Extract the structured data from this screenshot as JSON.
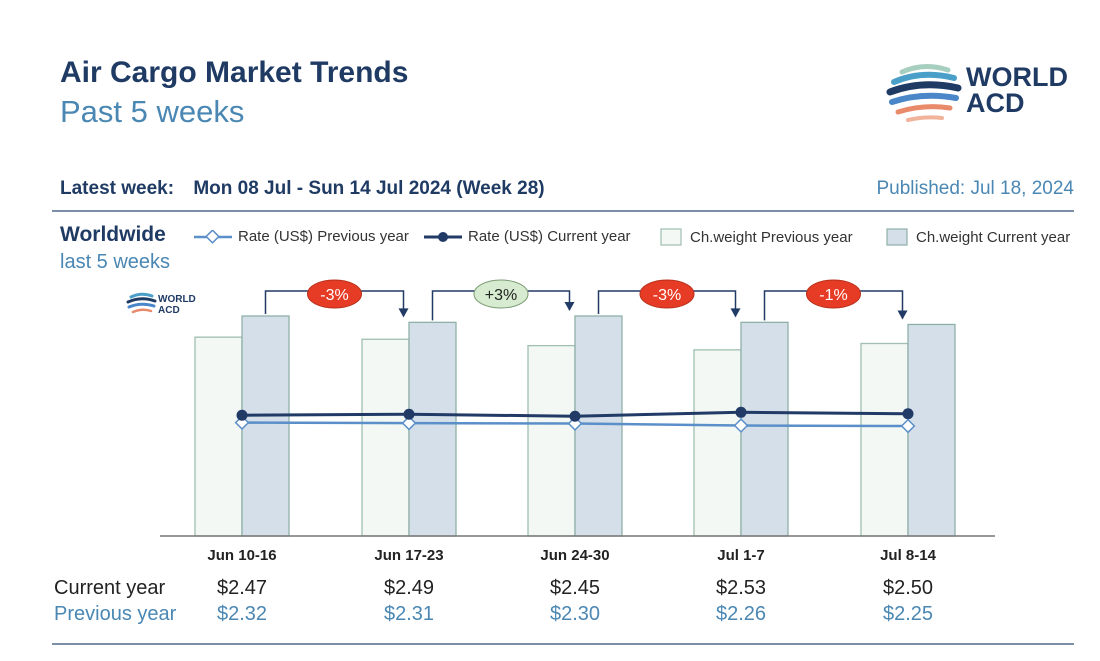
{
  "header": {
    "title": "Air Cargo Market Trends",
    "subtitle": "Past 5 weeks",
    "latest_label": "Latest week:",
    "latest_value": "Mon 08 Jul - Sun 14 Jul 2024 (Week 28)",
    "published": "Published: Jul 18, 2024"
  },
  "logo": {
    "line1": "WORLD",
    "line2": "ACD"
  },
  "section": {
    "region": "Worldwide",
    "period": "last 5 weeks"
  },
  "legend": {
    "rate_prev": "Rate (US$) Previous year",
    "rate_cur": "Rate (US$) Current year",
    "weight_prev": "Ch.weight Previous year",
    "weight_cur": "Ch.weight Current year"
  },
  "colors": {
    "rate_prev": "#5b8fc9",
    "rate_cur": "#213a66",
    "weight_prev_fill": "#f3f8f5",
    "weight_prev_stroke": "#9fbfb0",
    "weight_cur_fill": "#d4dfe9",
    "weight_cur_stroke": "#8fb0a8",
    "badge_red": "#e63b24",
    "badge_green": "#d6ebcf"
  },
  "chart_data": {
    "type": "bar",
    "categories": [
      "Jun 10-16",
      "Jun 17-23",
      "Jun 24-30",
      "Jul 1-7",
      "Jul 8-14"
    ],
    "series": [
      {
        "name": "Ch.weight Previous year",
        "kind": "bar",
        "values": [
          94,
          93,
          90,
          88,
          91
        ]
      },
      {
        "name": "Ch.weight Current year",
        "kind": "bar",
        "values": [
          104,
          101,
          104,
          101,
          100
        ]
      },
      {
        "name": "Rate (US$) Previous year",
        "kind": "line",
        "values": [
          2.32,
          2.31,
          2.3,
          2.26,
          2.25
        ]
      },
      {
        "name": "Rate (US$) Current year",
        "kind": "line",
        "values": [
          2.47,
          2.49,
          2.45,
          2.53,
          2.5
        ]
      }
    ],
    "changes": [
      {
        "label": "-3%",
        "from": 0,
        "to": 1,
        "sign": "neg"
      },
      {
        "label": "+3%",
        "from": 1,
        "to": 2,
        "sign": "pos"
      },
      {
        "label": "-3%",
        "from": 2,
        "to": 3,
        "sign": "neg"
      },
      {
        "label": "-1%",
        "from": 3,
        "to": 4,
        "sign": "neg"
      }
    ],
    "bar_ylim": [
      0,
      104
    ],
    "rate_ylim": [
      0,
      4.5
    ],
    "grid": false,
    "legend_position": "top"
  },
  "table": {
    "current_label": "Current year",
    "previous_label": "Previous year",
    "current": [
      "$2.47",
      "$2.49",
      "$2.45",
      "$2.53",
      "$2.50"
    ],
    "previous": [
      "$2.32",
      "$2.31",
      "$2.30",
      "$2.26",
      "$2.25"
    ]
  }
}
